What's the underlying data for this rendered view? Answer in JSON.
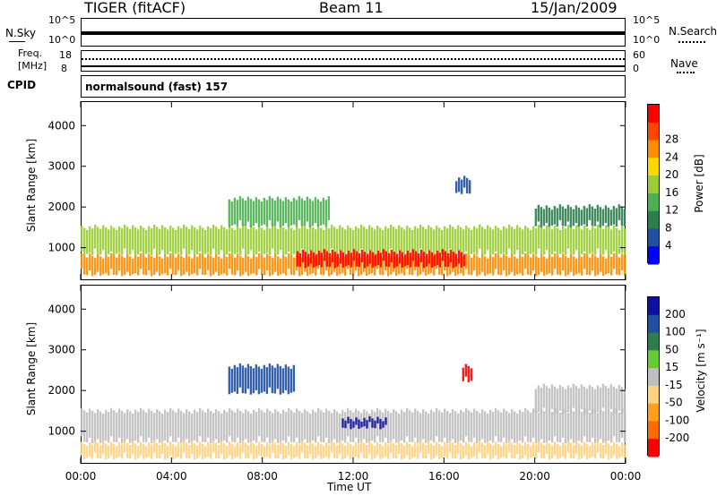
{
  "header": {
    "radar": "TIGER (fitACF)",
    "beam": "Beam 11",
    "date": "15/Jan/2009"
  },
  "noise_panel": {
    "left_label": "N.Sky",
    "right_label": "N.Search",
    "ticks_left": [
      "10^5",
      "10^0"
    ],
    "ticks_right": [
      "10^5",
      "10^0"
    ]
  },
  "freq_panel": {
    "left_label_1": "Freq.",
    "left_label_2": "[MHz]",
    "ticks_left": [
      "18",
      "8"
    ],
    "ticks_right": [
      "60",
      "0"
    ],
    "right_label": "Nave"
  },
  "cpid": {
    "label": "CPID",
    "value": "normalsound (fast) 157"
  },
  "chart_data": [
    {
      "type": "heatmap",
      "title": "",
      "xlabel": "Time UT",
      "ylabel": "Slant Range [km]",
      "x_ticks": [
        "00:00",
        "04:00",
        "08:00",
        "12:00",
        "16:00",
        "20:00",
        "00:00"
      ],
      "y_ticks": [
        "1000",
        "2000",
        "3000",
        "4000"
      ],
      "colorbar_label": "Power [dB]",
      "colorbar_ticks": [
        "4",
        "8",
        "12",
        "16",
        "20",
        "24",
        "28"
      ],
      "colors": [
        "#0000ff",
        "#1e4fa3",
        "#2e7d4f",
        "#4caf50",
        "#9acd32",
        "#ffd700",
        "#ff8c00",
        "#ff4500",
        "#ff0000"
      ],
      "echo_bands": [
        {
          "start_hour": 0.0,
          "end_hour": 24.0,
          "range_km": [
            300,
            800
          ],
          "level": 6
        },
        {
          "start_hour": 0.0,
          "end_hour": 24.0,
          "range_km": [
            800,
            1500
          ],
          "level": 4
        },
        {
          "start_hour": 9.5,
          "end_hour": 17.0,
          "range_km": [
            500,
            900
          ],
          "level": 8
        },
        {
          "start_hour": 6.5,
          "end_hour": 11.0,
          "range_km": [
            1500,
            2200
          ],
          "level": 3
        },
        {
          "start_hour": 20.0,
          "end_hour": 24.0,
          "range_km": [
            1500,
            2000
          ],
          "level": 2
        },
        {
          "start_hour": 16.5,
          "end_hour": 17.2,
          "range_km": [
            2300,
            2700
          ],
          "level": 1
        }
      ]
    },
    {
      "type": "heatmap",
      "title": "",
      "xlabel": "Time UT",
      "ylabel": "Slant Range [km]",
      "x_ticks": [
        "00:00",
        "04:00",
        "08:00",
        "12:00",
        "16:00",
        "20:00",
        "00:00"
      ],
      "y_ticks": [
        "1000",
        "2000",
        "3000",
        "4000"
      ],
      "colorbar_label": "Velocity [m s⁻¹]",
      "colorbar_ticks": [
        "200",
        "100",
        "50",
        "15",
        "-15",
        "-50",
        "-100",
        "-200"
      ],
      "colors": [
        "#1010a0",
        "#1e4fa3",
        "#2e7d4f",
        "#66cc33",
        "#bfbfbf",
        "#ffd27f",
        "#ff9f1a",
        "#ff6a00",
        "#ff0000"
      ],
      "echo_bands": [
        {
          "start_hour": 0.0,
          "end_hour": 24.0,
          "range_km": [
            700,
            1500
          ],
          "level": 4
        },
        {
          "start_hour": 0.0,
          "end_hour": 24.0,
          "range_km": [
            300,
            700
          ],
          "level": 5
        },
        {
          "start_hour": 11.5,
          "end_hour": 13.5,
          "range_km": [
            1050,
            1300
          ],
          "level": 0
        },
        {
          "start_hour": 6.5,
          "end_hour": 9.5,
          "range_km": [
            1900,
            2600
          ],
          "level": 1
        },
        {
          "start_hour": 16.8,
          "end_hour": 17.3,
          "range_km": [
            2200,
            2600
          ],
          "level": 8
        },
        {
          "start_hour": 20.0,
          "end_hour": 24.0,
          "range_km": [
            1400,
            2100
          ],
          "level": 4
        }
      ]
    }
  ]
}
